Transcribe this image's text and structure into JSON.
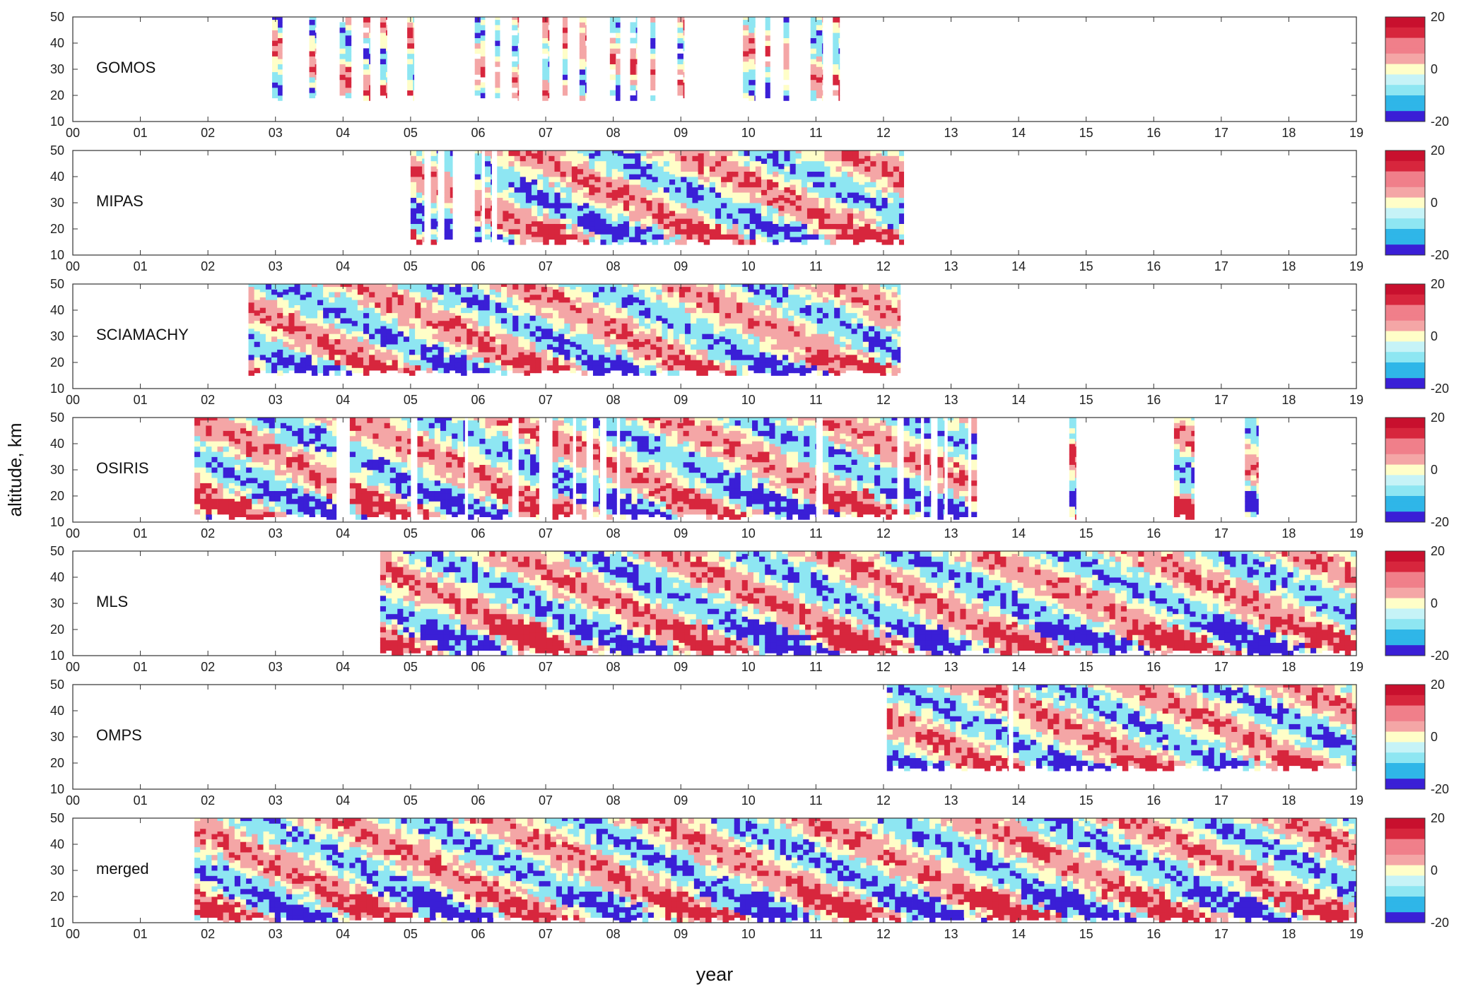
{
  "chart_data": {
    "type": "heatmap",
    "xlabel": "year",
    "ylabel": "altitude, km",
    "xlim": [
      0,
      19
    ],
    "ylim": [
      10,
      50
    ],
    "x_ticks": [
      "00",
      "01",
      "02",
      "03",
      "04",
      "05",
      "06",
      "07",
      "08",
      "09",
      "10",
      "11",
      "12",
      "13",
      "14",
      "15",
      "16",
      "17",
      "18",
      "19"
    ],
    "y_ticks": [
      "50",
      "40",
      "30",
      "20",
      "10"
    ],
    "colorbar": {
      "min": -20,
      "max": 20,
      "ticks": [
        "20",
        "0",
        "-20"
      ]
    },
    "colors": {
      "strong_positive": "#d7263d",
      "positive": "#f4a6a6",
      "neutral": "#fffec8",
      "negative": "#8ee6f2",
      "strong_negative": "#3a1fd6"
    },
    "panels": [
      {
        "name": "GOMOS",
        "coverage": "sparse",
        "bottom_km": 18,
        "segments": [
          [
            2.95,
            3.1
          ],
          [
            3.5,
            3.6
          ],
          [
            3.95,
            4.12
          ],
          [
            4.3,
            4.4
          ],
          [
            4.55,
            4.65
          ],
          [
            4.95,
            5.05
          ],
          [
            5.95,
            6.1
          ],
          [
            6.25,
            6.32
          ],
          [
            6.5,
            6.6
          ],
          [
            6.95,
            7.05
          ],
          [
            7.25,
            7.32
          ],
          [
            7.5,
            7.6
          ],
          [
            7.95,
            8.1
          ],
          [
            8.25,
            8.35
          ],
          [
            8.55,
            8.62
          ],
          [
            8.95,
            9.05
          ],
          [
            9.92,
            10.1
          ],
          [
            10.25,
            10.32
          ],
          [
            10.52,
            10.6
          ],
          [
            10.92,
            11.1
          ],
          [
            11.25,
            11.35
          ]
        ]
      },
      {
        "name": "MIPAS",
        "coverage": "dense",
        "bottom_km": 14,
        "segments": [
          [
            5.0,
            5.2
          ],
          [
            5.3,
            5.4
          ],
          [
            5.5,
            5.62
          ],
          [
            5.95,
            6.05
          ],
          [
            6.1,
            6.2
          ],
          [
            6.28,
            12.3
          ]
        ]
      },
      {
        "name": "SCIAMACHY",
        "coverage": "dense",
        "bottom_km": 15,
        "segments": [
          [
            2.6,
            12.25
          ]
        ]
      },
      {
        "name": "OSIRIS",
        "coverage": "dense",
        "bottom_km": 11,
        "segments": [
          [
            1.8,
            3.9
          ],
          [
            4.1,
            5.0
          ],
          [
            5.1,
            5.8
          ],
          [
            5.85,
            6.5
          ],
          [
            6.6,
            6.9
          ],
          [
            7.1,
            7.4
          ],
          [
            7.45,
            7.6
          ],
          [
            7.7,
            7.8
          ],
          [
            7.9,
            8.05
          ],
          [
            8.1,
            11.0
          ],
          [
            11.1,
            12.2
          ],
          [
            12.3,
            12.55
          ],
          [
            12.6,
            12.7
          ],
          [
            12.8,
            12.9
          ],
          [
            12.95,
            13.25
          ],
          [
            13.3,
            13.38
          ],
          [
            14.75,
            14.85
          ],
          [
            16.3,
            16.6
          ],
          [
            17.35,
            17.55
          ]
        ]
      },
      {
        "name": "MLS",
        "coverage": "dense",
        "bottom_km": 10,
        "segments": [
          [
            4.55,
            19.0
          ]
        ]
      },
      {
        "name": "OMPS",
        "coverage": "dense",
        "bottom_km": 17,
        "segments": [
          [
            12.05,
            13.85
          ],
          [
            13.92,
            19.0
          ]
        ]
      },
      {
        "name": "merged",
        "coverage": "dense",
        "bottom_km": 10,
        "segments": [
          [
            1.8,
            19.0
          ]
        ]
      }
    ]
  }
}
